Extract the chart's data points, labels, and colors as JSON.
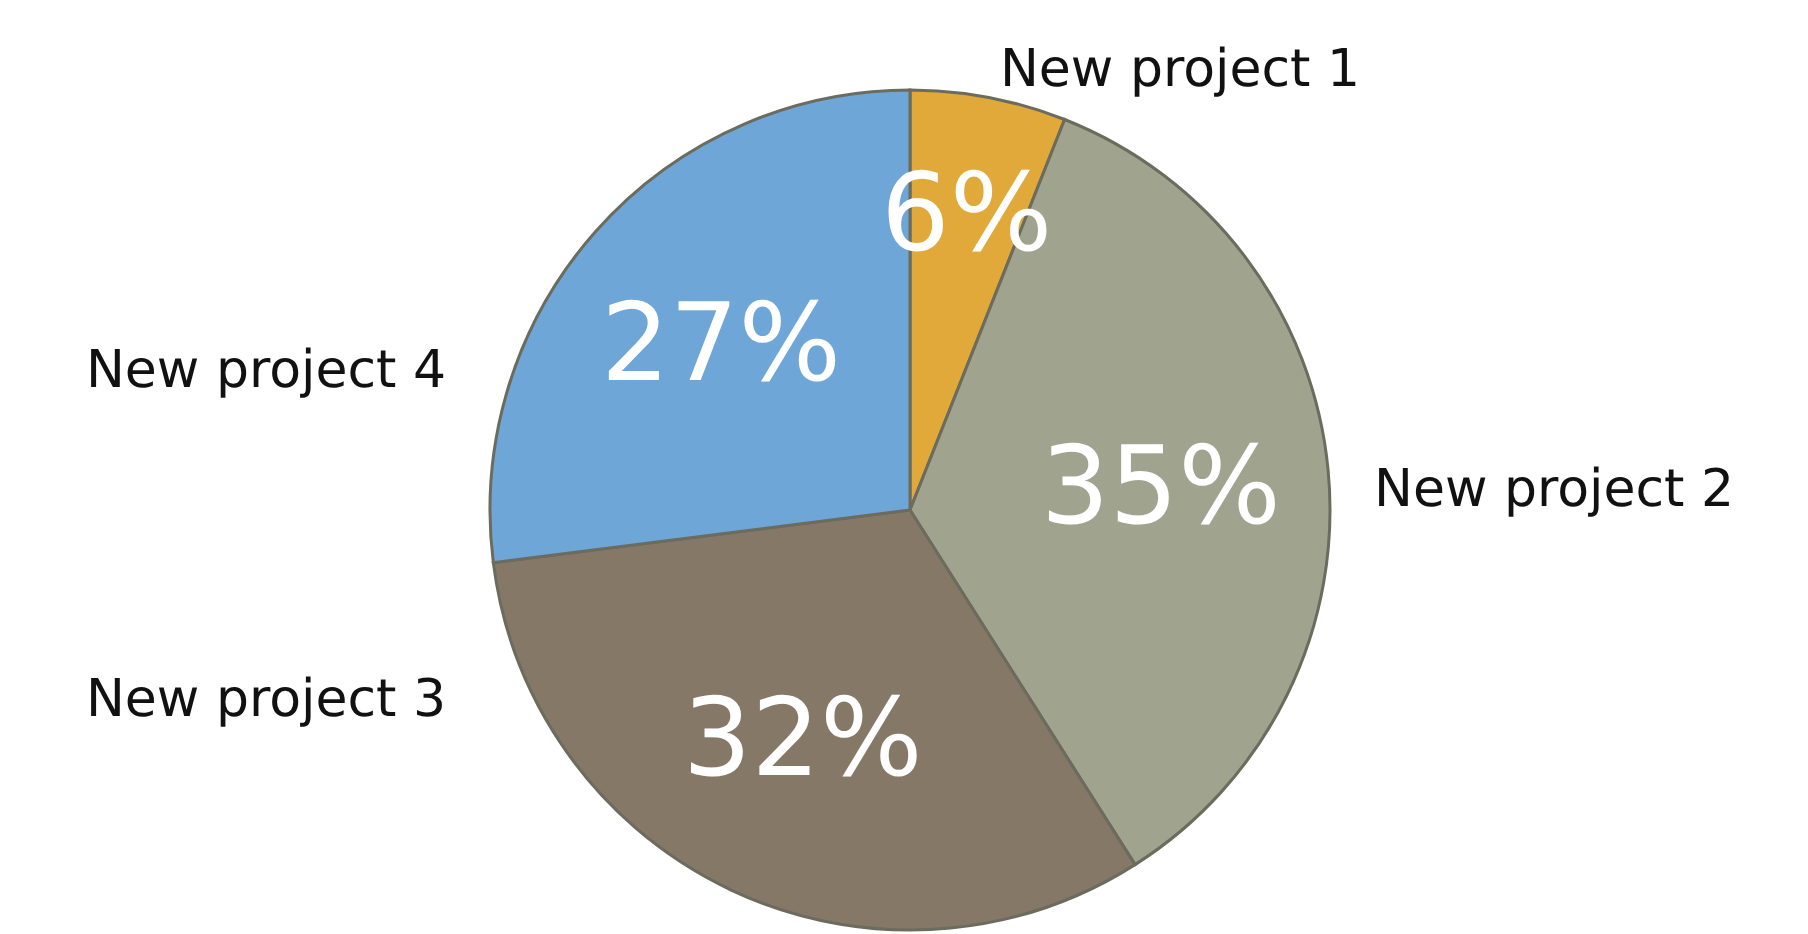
{
  "chart_data": {
    "type": "pie",
    "categories": [
      "New project 1",
      "New project 2",
      "New project 3",
      "New project 4"
    ],
    "values": [
      6,
      35,
      32,
      27
    ],
    "colors": [
      "#e0a93a",
      "#a0a48e",
      "#857866",
      "#6fa6d8"
    ],
    "value_labels": [
      "6%",
      "35%",
      "32%",
      "27%"
    ]
  }
}
